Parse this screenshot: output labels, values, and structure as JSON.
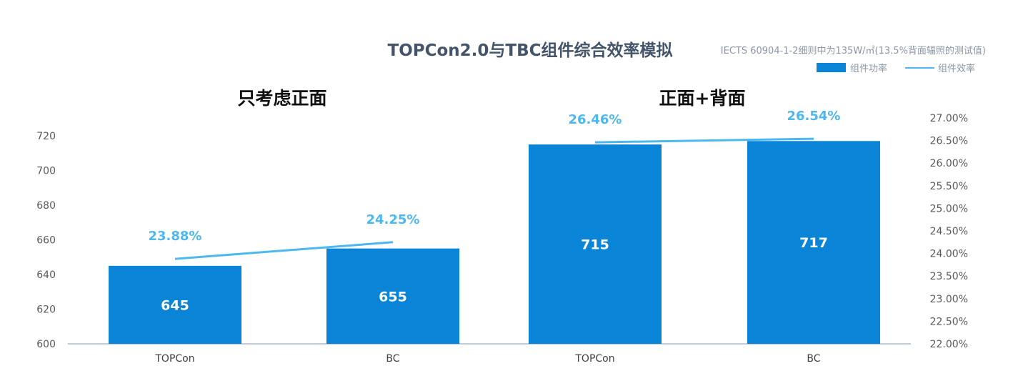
{
  "chart_data": {
    "type": "bar",
    "title": "TOPCon2.0与TBC组件综合效率模拟",
    "subtitle": "IECTS 60904-1-2细则中为135W/㎡(13.5%背面辐照的测试值)",
    "legend": {
      "position": "top-right",
      "bar_series": "组件功率",
      "line_series": "组件效率"
    },
    "groups": [
      {
        "title": "只考虑正面",
        "categories": [
          "TOPCon",
          "BC"
        ],
        "power": [
          645,
          655
        ],
        "efficiency": [
          23.88,
          24.25
        ],
        "efficiency_labels": [
          "23.88%",
          "24.25%"
        ]
      },
      {
        "title": "正面+背面",
        "categories": [
          "TOPCon",
          "BC"
        ],
        "power": [
          715,
          717
        ],
        "efficiency": [
          26.46,
          26.54
        ],
        "efficiency_labels": [
          "26.46%",
          "26.54%"
        ]
      }
    ],
    "y_left": {
      "ylim": [
        600,
        720
      ],
      "ticks": [
        "600",
        "620",
        "640",
        "660",
        "680",
        "700",
        "720"
      ]
    },
    "y_right": {
      "ylim": [
        22.0,
        27.0
      ],
      "ticks": [
        "22.00%",
        "22.50%",
        "23.00%",
        "23.50%",
        "24.00%",
        "24.50%",
        "25.00%",
        "25.50%",
        "26.00%",
        "26.50%",
        "27.00%"
      ]
    },
    "grid": false,
    "colors": {
      "bar": "#0a84d6",
      "line": "#4db8ef",
      "axis": "#aeb9c8"
    }
  }
}
